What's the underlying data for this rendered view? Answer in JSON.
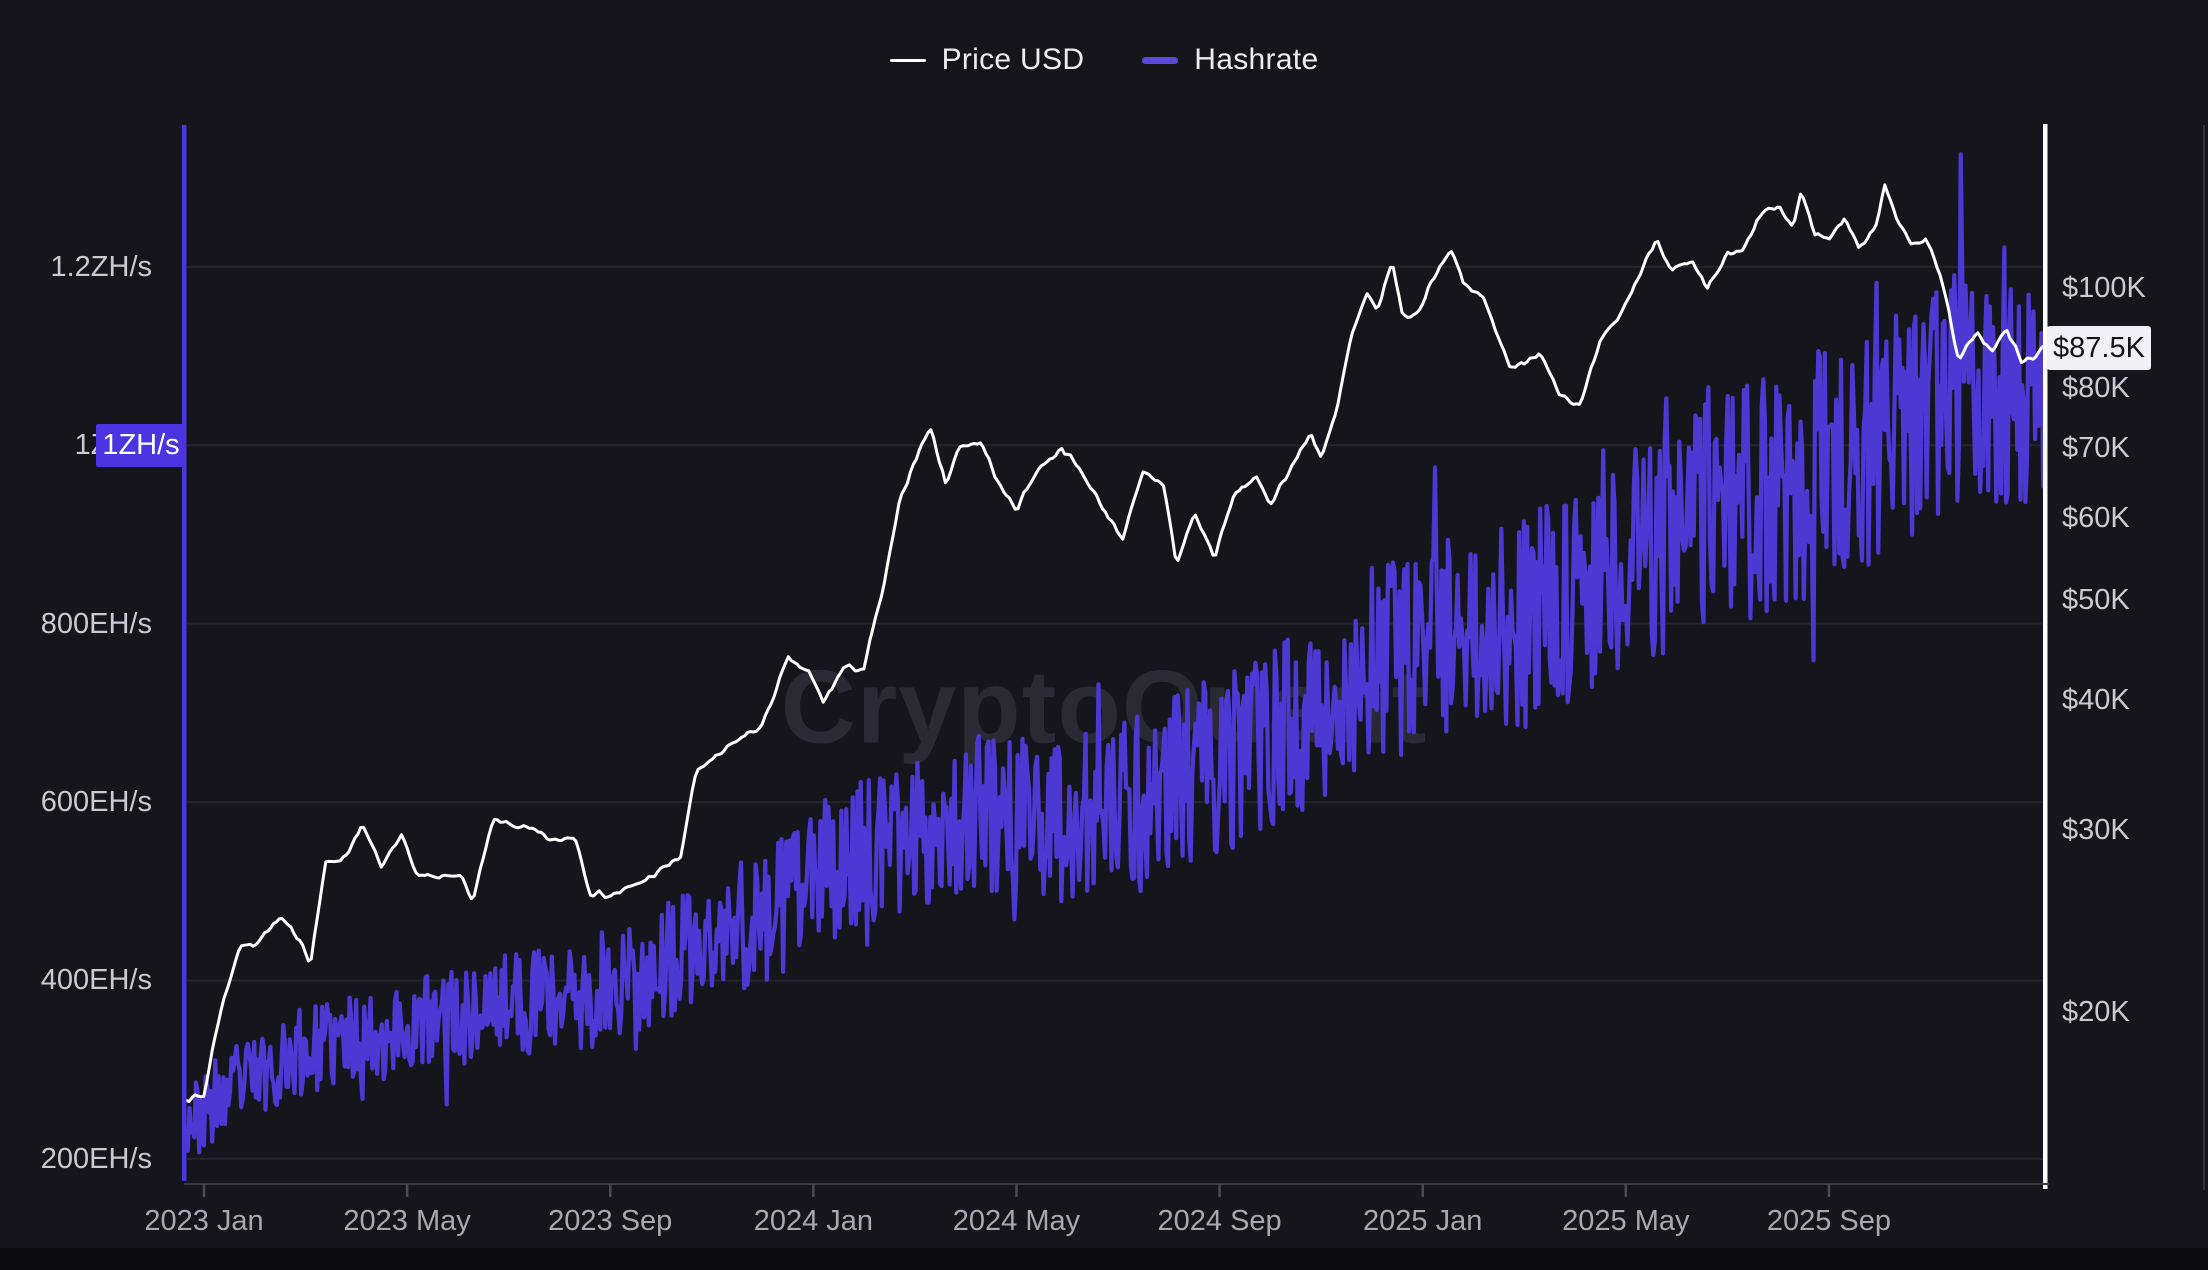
{
  "legend": {
    "items": [
      {
        "label": "Price USD",
        "color": "#ffffff"
      },
      {
        "label": "Hashrate",
        "color": "#5a49d8"
      }
    ]
  },
  "watermark": "CryptoQuant",
  "badges": {
    "hashrate_axis_badge": "1ZH/s",
    "price_current_badge": "$87.5K"
  },
  "colors": {
    "background": "#16151c",
    "grid": "#25242c",
    "purple_line": "#4e38d4",
    "purple_axis": "#4c34e0",
    "white_line": "#ffffff",
    "crosshair": "#ffffff",
    "baseline": "#3a3943",
    "tick": "#4a4954",
    "right_border": "#34333c"
  },
  "chart_data": {
    "type": "line",
    "title": "",
    "x_unit": "months since 2023 Jan",
    "x_axis": {
      "m_start": -0.35,
      "m_end": 36.25,
      "ticks": [
        [
          0,
          "2023 Jan"
        ],
        [
          4,
          "2023 May"
        ],
        [
          8,
          "2023 Sep"
        ],
        [
          12,
          "2024 Jan"
        ],
        [
          16,
          "2024 May"
        ],
        [
          20,
          "2024 Sep"
        ],
        [
          24,
          "2025 Jan"
        ],
        [
          28,
          "2025 May"
        ],
        [
          32,
          "2025 Sep"
        ]
      ]
    },
    "hashrate_axis": {
      "scale": "linear",
      "unit": "EH/s",
      "top_value": 1359,
      "bottom_value": 173,
      "ticks": [
        [
          1200,
          "1.2ZH/s"
        ],
        [
          1000,
          "1ZH/s"
        ],
        [
          800,
          "800EH/s"
        ],
        [
          600,
          "600EH/s"
        ],
        [
          400,
          "400EH/s"
        ],
        [
          200,
          "200EH/s"
        ]
      ],
      "highlighted_tick": 1000
    },
    "price_axis": {
      "scale": "log",
      "unit": "USD",
      "top_value": 143600,
      "bottom_value": 13680,
      "ticks": [
        [
          100000,
          "$100K"
        ],
        [
          80000,
          "$80K"
        ],
        [
          70000,
          "$70K"
        ],
        [
          60000,
          "$60K"
        ],
        [
          50000,
          "$50K"
        ],
        [
          40000,
          "$40K"
        ],
        [
          30000,
          "$30K"
        ],
        [
          20000,
          "$20K"
        ]
      ],
      "current_value": 87500
    },
    "series": [
      {
        "name": "Price USD",
        "axis": "price",
        "unit": "K USD",
        "samples": 640,
        "noise_pct": 0.008,
        "seed": 7,
        "anchors": [
          [
            -0.35,
            16.5
          ],
          [
            0,
            16.6
          ],
          [
            0.3,
            19.8
          ],
          [
            0.7,
            23.1
          ],
          [
            1,
            23.3
          ],
          [
            1.5,
            24.6
          ],
          [
            1.9,
            23.5
          ],
          [
            2.1,
            22.3
          ],
          [
            2.4,
            27.8
          ],
          [
            2.8,
            28.3
          ],
          [
            3.1,
            30.3
          ],
          [
            3.5,
            27.6
          ],
          [
            3.9,
            29.5
          ],
          [
            4.2,
            27.1
          ],
          [
            4.6,
            26.9
          ],
          [
            5,
            27.3
          ],
          [
            5.3,
            25.6
          ],
          [
            5.7,
            30.6
          ],
          [
            6,
            30.4
          ],
          [
            6.5,
            29.9
          ],
          [
            6.9,
            29.2
          ],
          [
            7.3,
            29.6
          ],
          [
            7.6,
            26.1
          ],
          [
            8,
            25.9
          ],
          [
            8.5,
            26.5
          ],
          [
            9,
            27.4
          ],
          [
            9.4,
            28.3
          ],
          [
            9.7,
            34.3
          ],
          [
            10,
            34.9
          ],
          [
            10.5,
            36.6
          ],
          [
            11,
            37.8
          ],
          [
            11.5,
            43.8
          ],
          [
            11.9,
            42.6
          ],
          [
            12.2,
            39.8
          ],
          [
            12.6,
            43
          ],
          [
            13,
            42.9
          ],
          [
            13.4,
            51.8
          ],
          [
            13.7,
            62
          ],
          [
            14,
            68.3
          ],
          [
            14.3,
            73.3
          ],
          [
            14.6,
            64.8
          ],
          [
            14.9,
            70.5
          ],
          [
            15.3,
            70.9
          ],
          [
            15.7,
            63.9
          ],
          [
            16,
            61.2
          ],
          [
            16.4,
            66.6
          ],
          [
            16.9,
            70.1
          ],
          [
            17.3,
            66.2
          ],
          [
            17.7,
            61.3
          ],
          [
            18.1,
            57.3
          ],
          [
            18.5,
            66.3
          ],
          [
            18.9,
            64.6
          ],
          [
            19.15,
            53.9
          ],
          [
            19.5,
            60.6
          ],
          [
            19.9,
            54.9
          ],
          [
            20.3,
            63.3
          ],
          [
            20.7,
            65.6
          ],
          [
            21,
            61.9
          ],
          [
            21.4,
            67
          ],
          [
            21.8,
            72.3
          ],
          [
            22,
            68.7
          ],
          [
            22.3,
            75.6
          ],
          [
            22.6,
            89.9
          ],
          [
            22.9,
            98.3
          ],
          [
            23.1,
            95
          ],
          [
            23.4,
            105.9
          ],
          [
            23.6,
            93.9
          ],
          [
            23.9,
            94.3
          ],
          [
            24.2,
            102.3
          ],
          [
            24.55,
            108.9
          ],
          [
            24.8,
            101
          ],
          [
            25.2,
            97.6
          ],
          [
            25.7,
            84.3
          ],
          [
            26,
            84.1
          ],
          [
            26.3,
            86.9
          ],
          [
            26.7,
            79.2
          ],
          [
            27.1,
            76.7
          ],
          [
            27.5,
            88.6
          ],
          [
            27.9,
            94.3
          ],
          [
            28.3,
            103.6
          ],
          [
            28.6,
            111.6
          ],
          [
            28.9,
            104.1
          ],
          [
            29.3,
            105.6
          ],
          [
            29.6,
            99.6
          ],
          [
            30,
            107.6
          ],
          [
            30.3,
            108.3
          ],
          [
            30.7,
            118.6
          ],
          [
            31,
            119.3
          ],
          [
            31.3,
            114.6
          ],
          [
            31.45,
            123.9
          ],
          [
            31.7,
            113.3
          ],
          [
            32,
            111.3
          ],
          [
            32.3,
            116.9
          ],
          [
            32.6,
            109.3
          ],
          [
            32.9,
            113.6
          ],
          [
            33.1,
            125.9
          ],
          [
            33.35,
            116.6
          ],
          [
            33.6,
            109.9
          ],
          [
            33.9,
            111.6
          ],
          [
            34.2,
            103.1
          ],
          [
            34.55,
            84.6
          ],
          [
            34.9,
            90.9
          ],
          [
            35.2,
            86.6
          ],
          [
            35.5,
            91.1
          ],
          [
            35.8,
            84.6
          ],
          [
            36.05,
            86.1
          ],
          [
            36.25,
            87.5
          ]
        ]
      },
      {
        "name": "Hashrate",
        "axis": "hashrate",
        "unit": "EH/s",
        "samples": 1150,
        "noise_base": 42,
        "noise_slope": 3.0,
        "seed": 23,
        "anchors": [
          [
            -0.35,
            245
          ],
          [
            0,
            250
          ],
          [
            1,
            295
          ],
          [
            2,
            320
          ],
          [
            3,
            335
          ],
          [
            4,
            345
          ],
          [
            5,
            360
          ],
          [
            6,
            375
          ],
          [
            7,
            380
          ],
          [
            8,
            395
          ],
          [
            9,
            415
          ],
          [
            10,
            440
          ],
          [
            11,
            470
          ],
          [
            12,
            510
          ],
          [
            13,
            545
          ],
          [
            14,
            565
          ],
          [
            15,
            585
          ],
          [
            16,
            590
          ],
          [
            17,
            580
          ],
          [
            18,
            590
          ],
          [
            19,
            620
          ],
          [
            20,
            640
          ],
          [
            21,
            665
          ],
          [
            22,
            700
          ],
          [
            23,
            745
          ],
          [
            24,
            780
          ],
          [
            25,
            795
          ],
          [
            26,
            800
          ],
          [
            27,
            840
          ],
          [
            28,
            870
          ],
          [
            29,
            900
          ],
          [
            30,
            930
          ],
          [
            31,
            950
          ],
          [
            32,
            975
          ],
          [
            33,
            1010
          ],
          [
            34,
            1050
          ],
          [
            35,
            1070
          ],
          [
            36.25,
            1080
          ]
        ]
      }
    ]
  }
}
